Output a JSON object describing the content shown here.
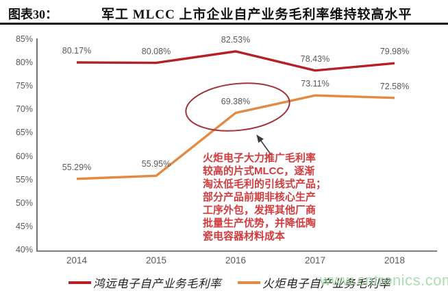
{
  "header": {
    "figure_label": "图表30：",
    "title": "军工 MLCC 上市企业自产业务毛利率维持较高水平"
  },
  "chart_data": {
    "type": "line",
    "x": [
      "2014",
      "2015",
      "2016",
      "2017",
      "2018"
    ],
    "series": [
      {
        "name": "鸿远电子自产业务毛利率",
        "color": "#b42025",
        "values": [
          80.17,
          80.08,
          82.53,
          78.43,
          79.98
        ],
        "labels": [
          "80.17%",
          "80.08%",
          "82.53%",
          "78.43%",
          "79.98%"
        ]
      },
      {
        "name": "火炬电子自产业务毛利率",
        "color": "#e28a44",
        "values": [
          55.29,
          55.95,
          69.38,
          73.11,
          72.58
        ],
        "labels": [
          "55.29%",
          "55.95%",
          "69.38%",
          "73.11%",
          "72.58%"
        ]
      }
    ],
    "ylim": [
      40,
      85
    ],
    "yticks": [
      "85%",
      "80%",
      "75%",
      "70%",
      "65%",
      "60%",
      "55%",
      "50%",
      "45%",
      "40%"
    ],
    "grid": false,
    "legend_position": "bottom",
    "tick_color": "#595959",
    "highlight": {
      "ellipse_on_point": "2016 火炬电子 69.38%",
      "ellipse_color": "#a23237",
      "arrow_color": "#3a3a3a"
    }
  },
  "annotation": {
    "color": "#d33a3d",
    "lines": [
      "火炬电子大力推广毛利率",
      "较高的片式MLCC，逐渐",
      "淘汰低毛利的引线式产品；",
      "部分产品前期非核心生产",
      "工序外包，发挥其他厂商",
      "批量生产优势，并降低陶",
      "瓷电容器材料成本"
    ]
  },
  "watermark": {
    "text": "www.cntronics.com",
    "color": "#9ed8a4"
  }
}
